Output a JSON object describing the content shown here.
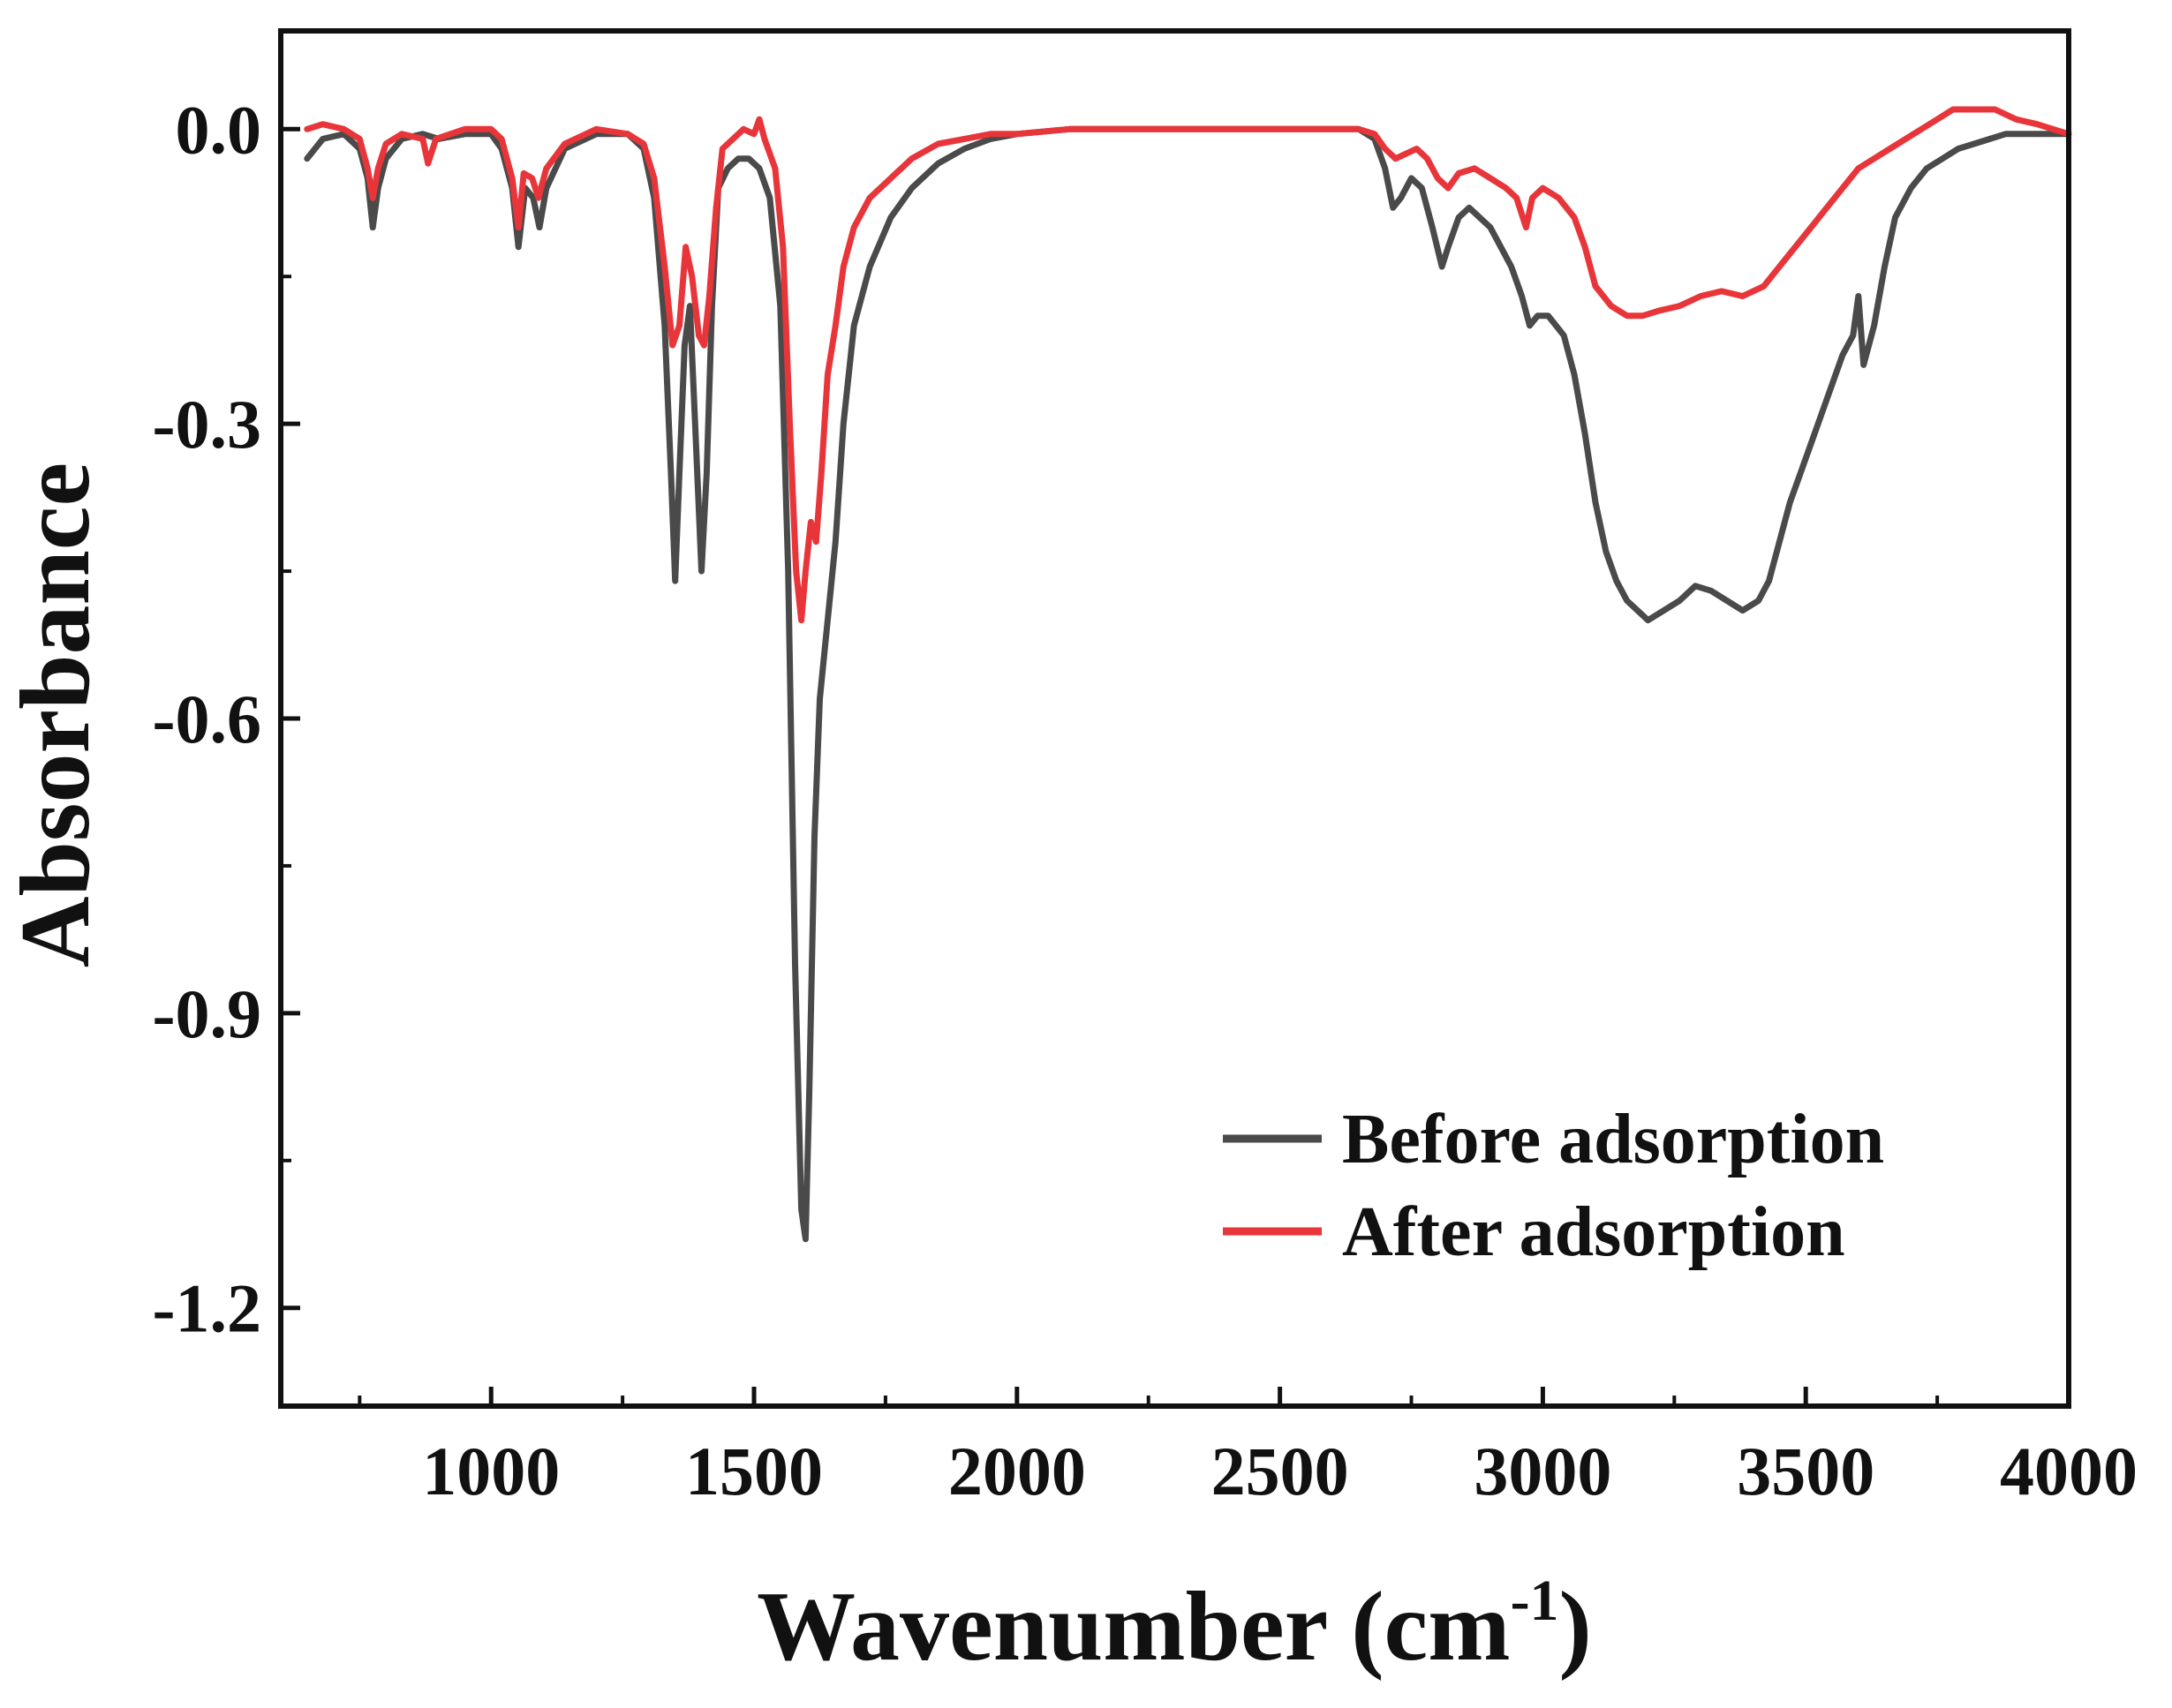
{
  "chart_data": {
    "type": "line",
    "title": "",
    "xlabel": "Wavenumber (cm",
    "xlabel_sup": "-1",
    "xlabel_close": ")",
    "ylabel": "Absorbance",
    "xlim": [
      600,
      4000
    ],
    "ylim": [
      -1.3,
      0.1
    ],
    "xticks": [
      1000,
      1500,
      2000,
      2500,
      3000,
      3500,
      4000
    ],
    "xtick_labels": [
      "1000",
      "1500",
      "2000",
      "2500",
      "3000",
      "3500",
      "4000"
    ],
    "yticks": [
      0.0,
      -0.3,
      -0.6,
      -0.9,
      -1.2
    ],
    "ytick_labels": [
      "0.0",
      "-0.3",
      "-0.6",
      "-0.9",
      "-1.2"
    ],
    "grid": false,
    "legend_position": "bottom-right",
    "series": [
      {
        "name": "Before adsorption",
        "color": "#4a4a4a",
        "points": [
          [
            650,
            -0.03
          ],
          [
            680,
            -0.01
          ],
          [
            720,
            -0.005
          ],
          [
            750,
            -0.02
          ],
          [
            765,
            -0.05
          ],
          [
            775,
            -0.1
          ],
          [
            785,
            -0.06
          ],
          [
            800,
            -0.03
          ],
          [
            830,
            -0.01
          ],
          [
            870,
            -0.005
          ],
          [
            900,
            -0.01
          ],
          [
            950,
            -0.005
          ],
          [
            1000,
            -0.005
          ],
          [
            1020,
            -0.02
          ],
          [
            1040,
            -0.06
          ],
          [
            1052,
            -0.12
          ],
          [
            1065,
            -0.06
          ],
          [
            1080,
            -0.07
          ],
          [
            1092,
            -0.1
          ],
          [
            1105,
            -0.06
          ],
          [
            1140,
            -0.02
          ],
          [
            1200,
            -0.005
          ],
          [
            1260,
            -0.005
          ],
          [
            1290,
            -0.02
          ],
          [
            1310,
            -0.07
          ],
          [
            1330,
            -0.2
          ],
          [
            1342,
            -0.35
          ],
          [
            1350,
            -0.46
          ],
          [
            1358,
            -0.35
          ],
          [
            1368,
            -0.22
          ],
          [
            1378,
            -0.18
          ],
          [
            1388,
            -0.3
          ],
          [
            1400,
            -0.45
          ],
          [
            1410,
            -0.35
          ],
          [
            1420,
            -0.18
          ],
          [
            1432,
            -0.06
          ],
          [
            1450,
            -0.04
          ],
          [
            1470,
            -0.03
          ],
          [
            1490,
            -0.03
          ],
          [
            1510,
            -0.04
          ],
          [
            1530,
            -0.07
          ],
          [
            1550,
            -0.18
          ],
          [
            1565,
            -0.45
          ],
          [
            1578,
            -0.85
          ],
          [
            1590,
            -1.1
          ],
          [
            1598,
            -1.13
          ],
          [
            1605,
            -0.98
          ],
          [
            1615,
            -0.72
          ],
          [
            1625,
            -0.58
          ],
          [
            1640,
            -0.5
          ],
          [
            1655,
            -0.42
          ],
          [
            1670,
            -0.3
          ],
          [
            1690,
            -0.2
          ],
          [
            1720,
            -0.14
          ],
          [
            1760,
            -0.09
          ],
          [
            1800,
            -0.06
          ],
          [
            1850,
            -0.035
          ],
          [
            1900,
            -0.02
          ],
          [
            1950,
            -0.01
          ],
          [
            2000,
            -0.005
          ],
          [
            2100,
            0.0
          ],
          [
            2300,
            0.0
          ],
          [
            2500,
            0.0
          ],
          [
            2650,
            0.0
          ],
          [
            2680,
            -0.01
          ],
          [
            2700,
            -0.04
          ],
          [
            2715,
            -0.08
          ],
          [
            2730,
            -0.07
          ],
          [
            2750,
            -0.05
          ],
          [
            2770,
            -0.06
          ],
          [
            2790,
            -0.1
          ],
          [
            2808,
            -0.14
          ],
          [
            2820,
            -0.12
          ],
          [
            2840,
            -0.09
          ],
          [
            2860,
            -0.08
          ],
          [
            2880,
            -0.09
          ],
          [
            2900,
            -0.1
          ],
          [
            2920,
            -0.12
          ],
          [
            2940,
            -0.14
          ],
          [
            2960,
            -0.17
          ],
          [
            2975,
            -0.2
          ],
          [
            2990,
            -0.19
          ],
          [
            3010,
            -0.19
          ],
          [
            3040,
            -0.21
          ],
          [
            3060,
            -0.25
          ],
          [
            3080,
            -0.31
          ],
          [
            3100,
            -0.38
          ],
          [
            3120,
            -0.43
          ],
          [
            3140,
            -0.46
          ],
          [
            3160,
            -0.48
          ],
          [
            3180,
            -0.49
          ],
          [
            3200,
            -0.5
          ],
          [
            3230,
            -0.49
          ],
          [
            3260,
            -0.48
          ],
          [
            3290,
            -0.465
          ],
          [
            3320,
            -0.47
          ],
          [
            3350,
            -0.48
          ],
          [
            3380,
            -0.49
          ],
          [
            3410,
            -0.48
          ],
          [
            3430,
            -0.46
          ],
          [
            3450,
            -0.42
          ],
          [
            3470,
            -0.38
          ],
          [
            3490,
            -0.35
          ],
          [
            3510,
            -0.32
          ],
          [
            3530,
            -0.29
          ],
          [
            3550,
            -0.26
          ],
          [
            3570,
            -0.23
          ],
          [
            3590,
            -0.21
          ],
          [
            3600,
            -0.17
          ],
          [
            3610,
            -0.24
          ],
          [
            3630,
            -0.2
          ],
          [
            3650,
            -0.14
          ],
          [
            3670,
            -0.09
          ],
          [
            3700,
            -0.06
          ],
          [
            3730,
            -0.04
          ],
          [
            3760,
            -0.03
          ],
          [
            3790,
            -0.02
          ],
          [
            3820,
            -0.015
          ],
          [
            3850,
            -0.01
          ],
          [
            3880,
            -0.005
          ],
          [
            3920,
            -0.005
          ],
          [
            3960,
            -0.005
          ],
          [
            4000,
            -0.005
          ]
        ]
      },
      {
        "name": "After adsorption",
        "color": "#e8353a",
        "points": [
          [
            650,
            0.0
          ],
          [
            680,
            0.005
          ],
          [
            720,
            0.0
          ],
          [
            750,
            -0.01
          ],
          [
            765,
            -0.04
          ],
          [
            775,
            -0.07
          ],
          [
            785,
            -0.04
          ],
          [
            800,
            -0.015
          ],
          [
            830,
            -0.005
          ],
          [
            870,
            -0.01
          ],
          [
            880,
            -0.035
          ],
          [
            895,
            -0.01
          ],
          [
            950,
            0.0
          ],
          [
            1000,
            0.0
          ],
          [
            1020,
            -0.01
          ],
          [
            1040,
            -0.05
          ],
          [
            1052,
            -0.1
          ],
          [
            1062,
            -0.045
          ],
          [
            1078,
            -0.05
          ],
          [
            1090,
            -0.07
          ],
          [
            1105,
            -0.04
          ],
          [
            1140,
            -0.015
          ],
          [
            1200,
            0.0
          ],
          [
            1260,
            -0.005
          ],
          [
            1290,
            -0.015
          ],
          [
            1310,
            -0.05
          ],
          [
            1330,
            -0.14
          ],
          [
            1345,
            -0.22
          ],
          [
            1358,
            -0.2
          ],
          [
            1370,
            -0.12
          ],
          [
            1382,
            -0.15
          ],
          [
            1395,
            -0.21
          ],
          [
            1405,
            -0.22
          ],
          [
            1415,
            -0.17
          ],
          [
            1428,
            -0.08
          ],
          [
            1440,
            -0.02
          ],
          [
            1460,
            -0.01
          ],
          [
            1480,
            0.0
          ],
          [
            1500,
            -0.005
          ],
          [
            1510,
            0.01
          ],
          [
            1520,
            -0.01
          ],
          [
            1540,
            -0.04
          ],
          [
            1555,
            -0.12
          ],
          [
            1568,
            -0.3
          ],
          [
            1580,
            -0.45
          ],
          [
            1590,
            -0.5
          ],
          [
            1598,
            -0.45
          ],
          [
            1608,
            -0.4
          ],
          [
            1618,
            -0.42
          ],
          [
            1628,
            -0.35
          ],
          [
            1640,
            -0.25
          ],
          [
            1655,
            -0.2
          ],
          [
            1670,
            -0.14
          ],
          [
            1690,
            -0.1
          ],
          [
            1720,
            -0.07
          ],
          [
            1760,
            -0.05
          ],
          [
            1800,
            -0.03
          ],
          [
            1850,
            -0.015
          ],
          [
            1900,
            -0.01
          ],
          [
            1950,
            -0.005
          ],
          [
            2000,
            -0.005
          ],
          [
            2100,
            0.0
          ],
          [
            2300,
            0.0
          ],
          [
            2500,
            0.0
          ],
          [
            2650,
            0.0
          ],
          [
            2680,
            -0.005
          ],
          [
            2700,
            -0.02
          ],
          [
            2720,
            -0.03
          ],
          [
            2740,
            -0.025
          ],
          [
            2760,
            -0.02
          ],
          [
            2780,
            -0.03
          ],
          [
            2800,
            -0.05
          ],
          [
            2820,
            -0.06
          ],
          [
            2840,
            -0.045
          ],
          [
            2870,
            -0.04
          ],
          [
            2900,
            -0.05
          ],
          [
            2930,
            -0.06
          ],
          [
            2950,
            -0.07
          ],
          [
            2968,
            -0.1
          ],
          [
            2980,
            -0.07
          ],
          [
            3000,
            -0.06
          ],
          [
            3030,
            -0.07
          ],
          [
            3060,
            -0.09
          ],
          [
            3080,
            -0.12
          ],
          [
            3100,
            -0.16
          ],
          [
            3130,
            -0.18
          ],
          [
            3160,
            -0.19
          ],
          [
            3190,
            -0.19
          ],
          [
            3220,
            -0.185
          ],
          [
            3260,
            -0.18
          ],
          [
            3300,
            -0.17
          ],
          [
            3340,
            -0.165
          ],
          [
            3380,
            -0.17
          ],
          [
            3420,
            -0.16
          ],
          [
            3450,
            -0.14
          ],
          [
            3480,
            -0.12
          ],
          [
            3510,
            -0.1
          ],
          [
            3540,
            -0.08
          ],
          [
            3570,
            -0.06
          ],
          [
            3600,
            -0.04
          ],
          [
            3630,
            -0.03
          ],
          [
            3660,
            -0.02
          ],
          [
            3690,
            -0.01
          ],
          [
            3720,
            0.0
          ],
          [
            3750,
            0.01
          ],
          [
            3780,
            0.02
          ],
          [
            3820,
            0.02
          ],
          [
            3860,
            0.02
          ],
          [
            3900,
            0.01
          ],
          [
            3940,
            0.005
          ],
          [
            3970,
            0.0
          ],
          [
            4000,
            -0.005
          ]
        ]
      }
    ]
  }
}
